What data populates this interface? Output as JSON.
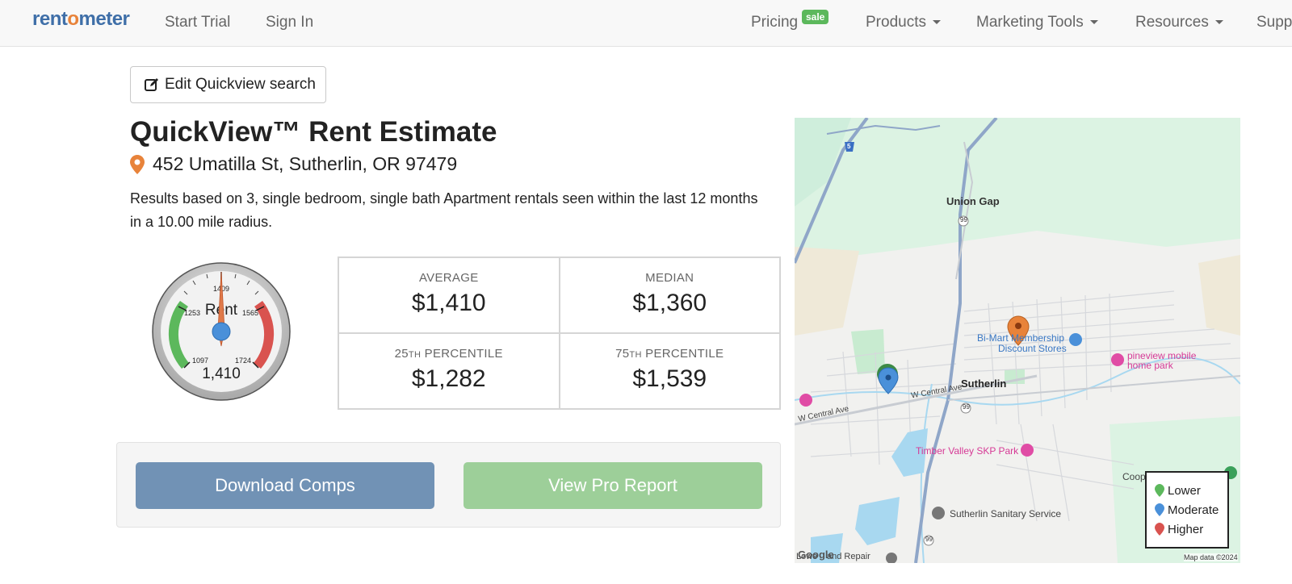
{
  "nav": {
    "logo_prefix": "rent",
    "logo_o": "o",
    "logo_suffix": "meter",
    "start_trial": "Start Trial",
    "sign_in": "Sign In",
    "pricing": "Pricing",
    "sale_badge": "sale",
    "products": "Products",
    "marketing_tools": "Marketing Tools",
    "resources": "Resources",
    "support": "Support"
  },
  "edit_button": "Edit Quickview search",
  "title": "QuickView™ Rent Estimate",
  "address": "452 Umatilla St, Sutherlin, OR 97479",
  "description": "Results based on 3, single bedroom, single bath Apartment rentals seen within the last 12 months in a 10.00 mile radius.",
  "gauge": {
    "label": "Rent",
    "value_label": "1,410",
    "ticks": [
      "1097",
      "1253",
      "1409",
      "1565",
      "1724"
    ]
  },
  "stats": {
    "average_label": "AVERAGE",
    "average_value": "$1,410",
    "median_label": "MEDIAN",
    "median_value": "$1,360",
    "p25_num": "25",
    "p25_sup": "TH",
    "p25_label": "PERCENTILE",
    "p25_value": "$1,282",
    "p75_num": "75",
    "p75_sup": "TH",
    "p75_label": "PERCENTILE",
    "p75_value": "$1,539"
  },
  "actions": {
    "download_comps": "Download Comps",
    "view_pro_report": "View Pro Report"
  },
  "map": {
    "labels": {
      "union_gap": "Union Gap",
      "bimart": "Bi-Mart Membership",
      "bimart2": "Discount Stores",
      "pineview": "pineview mobile",
      "pineview2": "home park",
      "sutherlin": "Sutherlin",
      "w_central": "W Central Ave",
      "w_central2": "W Central Ave",
      "timber": "Timber Valley SKP Park",
      "sanitary": "Sutherlin Sanitary Service",
      "coop": "Coop",
      "lowe": "Lowe",
      "repair": "and Repair",
      "google": "Google",
      "map_data": "Map data ©2024",
      "hwy99": "99",
      "i5": "5"
    },
    "legend": {
      "lower": "Lower",
      "moderate": "Moderate",
      "higher": "Higher"
    }
  },
  "colors": {
    "brand_blue": "#3f6fa8",
    "brand_orange": "#e8833a",
    "lower": "#5cb85c",
    "moderate": "#4a90d9",
    "higher": "#d9534f",
    "download_btn": "#7192b5",
    "pro_btn": "#9dcf99"
  }
}
